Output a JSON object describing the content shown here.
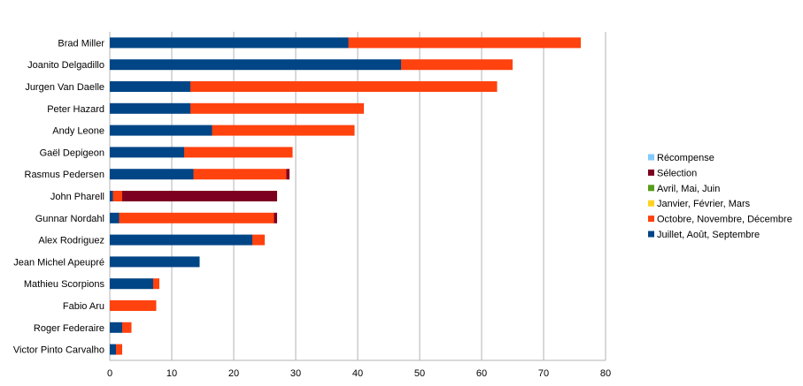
{
  "chart_data": {
    "type": "bar",
    "orientation": "horizontal",
    "stacked": true,
    "categories": [
      "Brad Miller",
      "Joanito Delgadillo",
      "Jurgen Van Daelle",
      "Peter Hazard",
      "Andy Leone",
      "Gaël Depigeon",
      "Rasmus Pedersen",
      "John Pharell",
      "Gunnar Nordahl",
      "Alex Rodriguez",
      "Jean Michel Apeupré",
      "Mathieu Scorpions",
      "Fabio Aru",
      "Roger Federaire",
      "Victor Pinto Carvalho"
    ],
    "series": [
      {
        "name": "Juillet, Août, Septembre",
        "color": "#004586",
        "values": [
          38.5,
          47,
          13,
          13,
          16.5,
          12,
          13.5,
          0.5,
          1.5,
          23,
          14.5,
          7,
          0,
          2,
          1
        ]
      },
      {
        "name": "Octobre, Novembre, Décembre",
        "color": "#ff420e",
        "values": [
          37.5,
          18,
          49.5,
          28,
          23,
          17.5,
          15,
          1.5,
          25,
          2,
          0,
          1,
          7.5,
          1.5,
          1
        ]
      },
      {
        "name": "Janvier, Février, Mars",
        "color": "#ffd320",
        "values": [
          0,
          0,
          0,
          0,
          0,
          0,
          0,
          0,
          0,
          0,
          0,
          0,
          0,
          0,
          0
        ]
      },
      {
        "name": "Avril, Mai, Juin",
        "color": "#579d1c",
        "values": [
          0,
          0,
          0,
          0,
          0,
          0,
          0,
          0,
          0,
          0,
          0,
          0,
          0,
          0,
          0
        ]
      },
      {
        "name": "Sélection",
        "color": "#7e0021",
        "values": [
          0,
          0,
          0,
          0,
          0,
          0,
          0.5,
          25,
          0.5,
          0,
          0,
          0,
          0,
          0,
          0
        ]
      },
      {
        "name": "Récompense",
        "color": "#83caff",
        "values": [
          0,
          0,
          0,
          0,
          0,
          0,
          0,
          0,
          0,
          0,
          0,
          0,
          0,
          0,
          0
        ]
      }
    ],
    "legend_order": [
      "Récompense",
      "Sélection",
      "Avril, Mai, Juin",
      "Janvier, Février, Mars",
      "Octobre, Novembre, Décembre",
      "Juillet, Août, Septembre"
    ],
    "xlim": [
      0,
      80
    ],
    "xticks": [
      0,
      10,
      20,
      30,
      40,
      50,
      60,
      70,
      80
    ],
    "grid": true,
    "legend_position": "right",
    "title": "",
    "xlabel": "",
    "ylabel": ""
  }
}
